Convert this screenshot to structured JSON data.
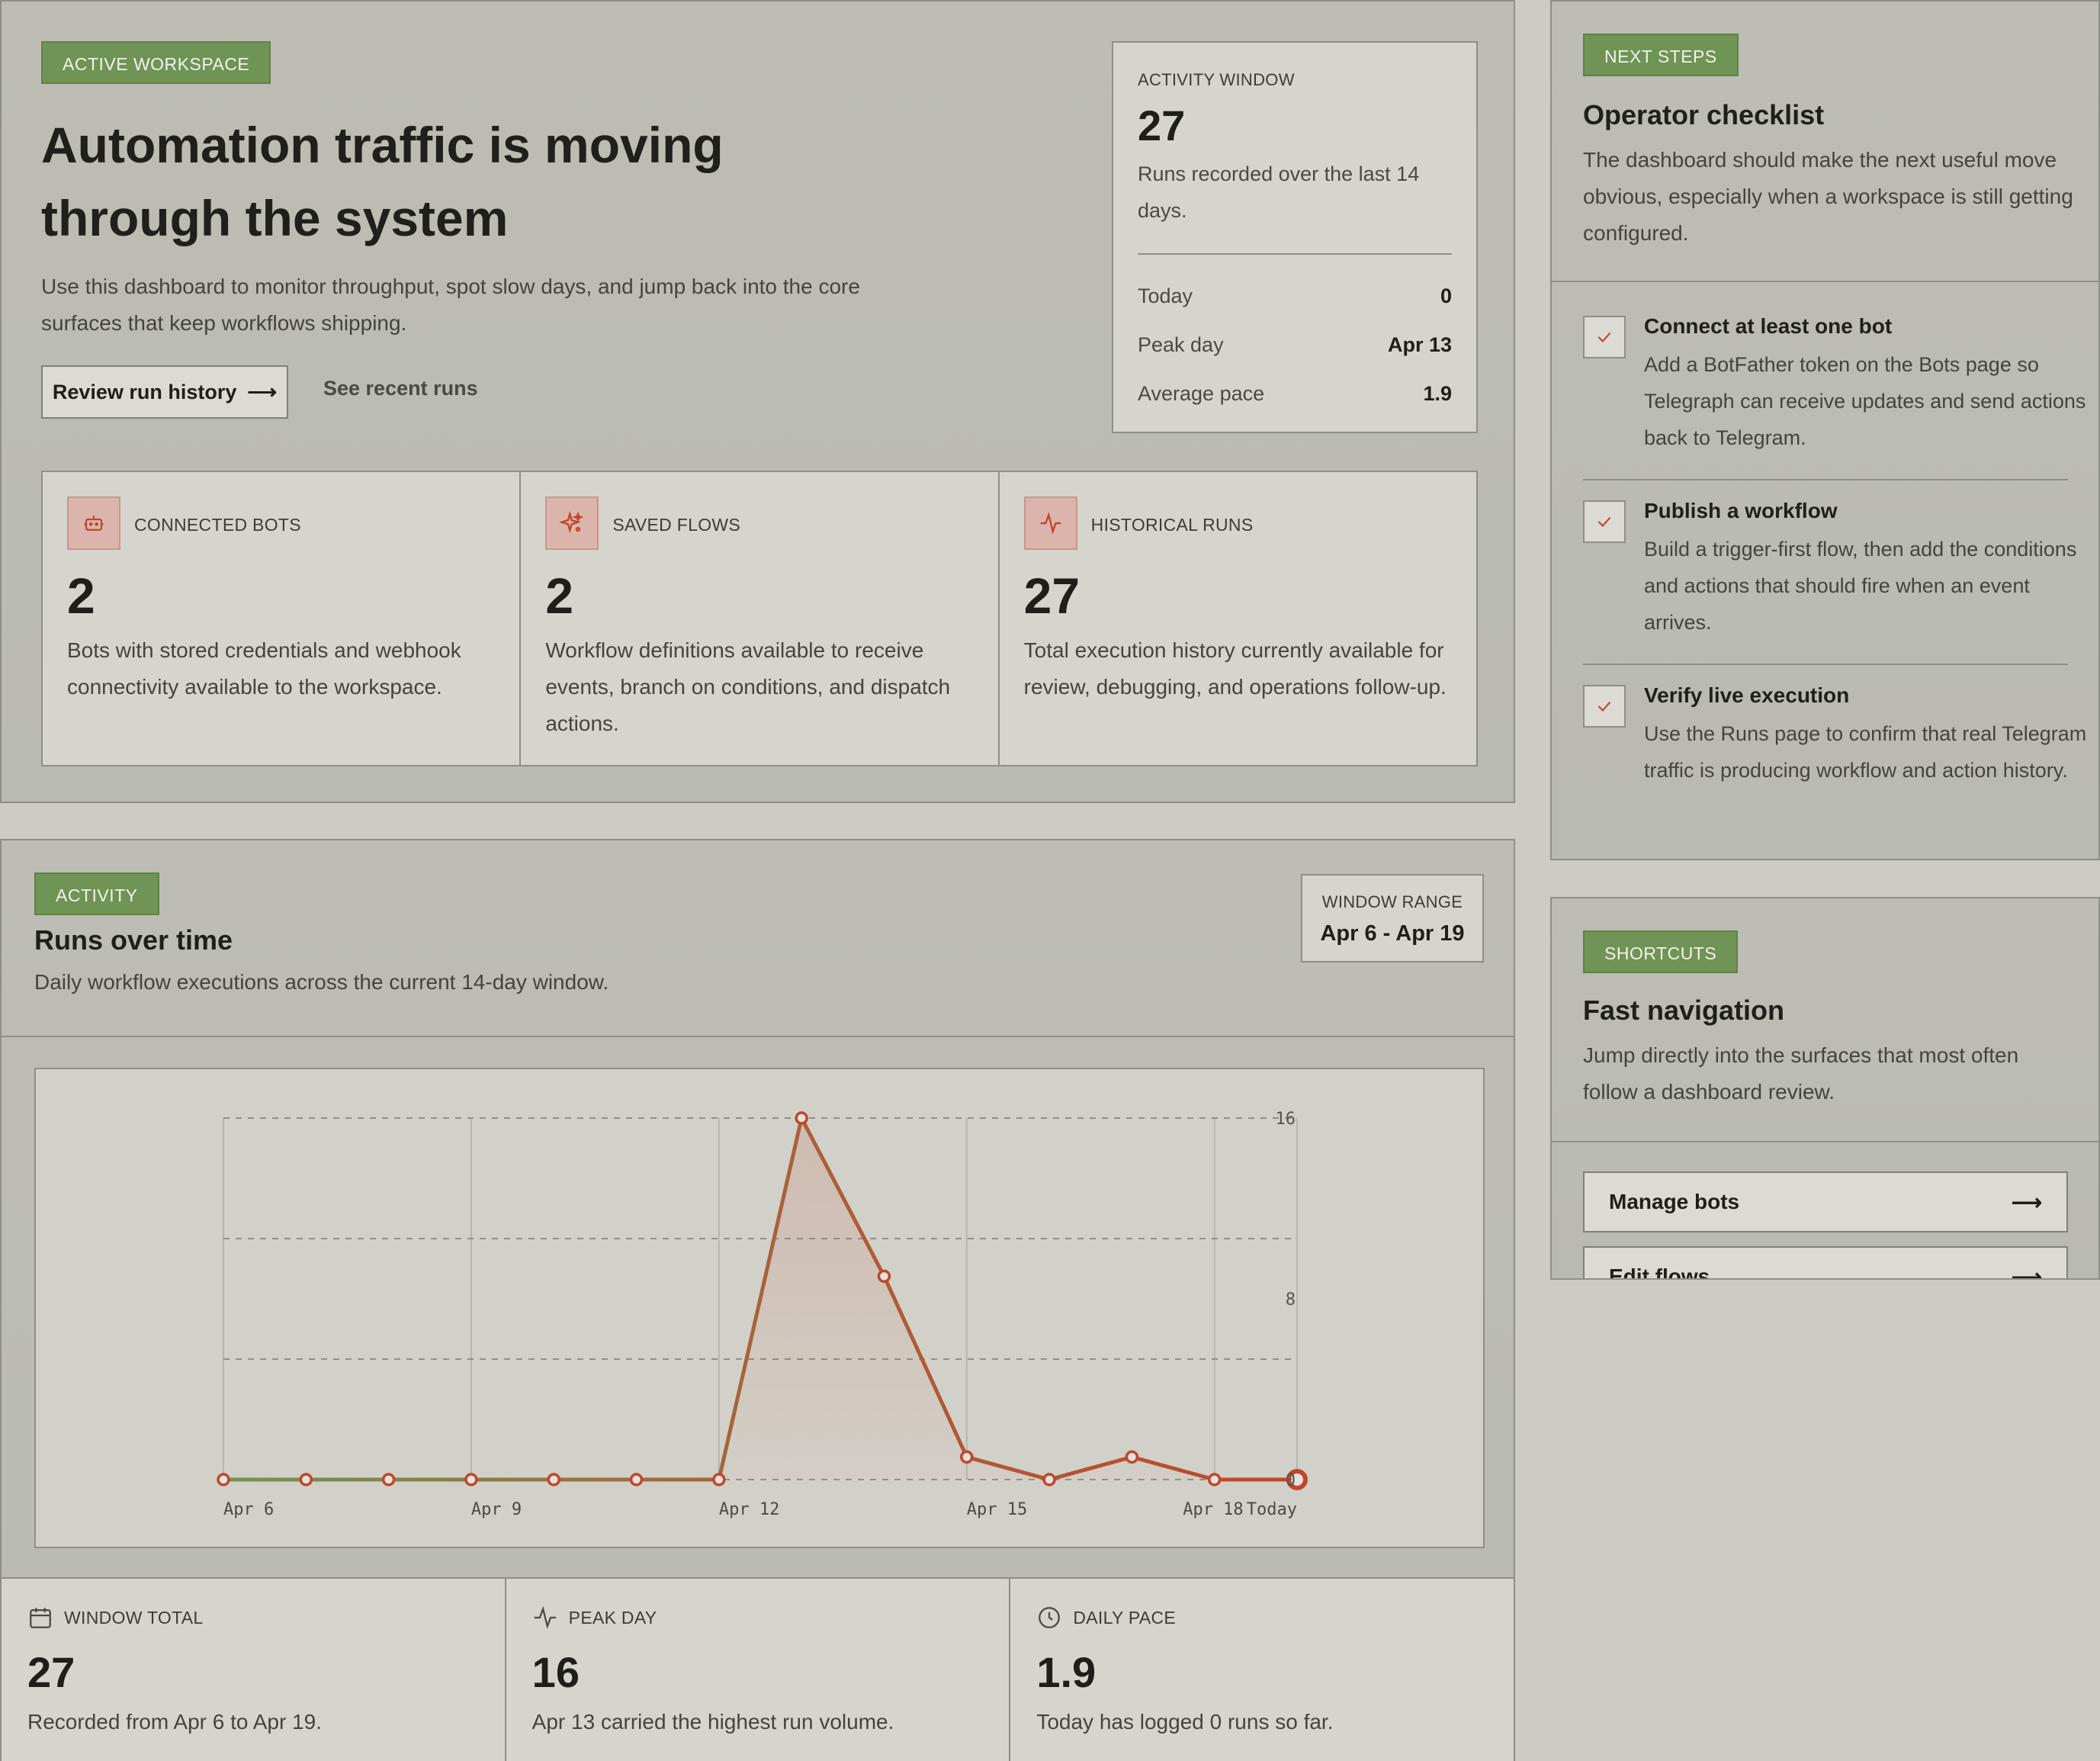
{
  "hero": {
    "tag": "ACTIVE WORKSPACE",
    "title": "Automation traffic is moving through the system",
    "description": "Use this dashboard to monitor throughput, spot slow days, and jump back into the core surfaces that keep workflows shipping.",
    "primary_button": "Review run history",
    "secondary_link": "See recent runs"
  },
  "activity_window": {
    "label": "ACTIVITY WINDOW",
    "value": "27",
    "description": "Runs recorded over the last 14 days.",
    "rows": [
      {
        "key": "Today",
        "value": "0"
      },
      {
        "key": "Peak day",
        "value": "Apr 13"
      },
      {
        "key": "Average pace",
        "value": "1.9"
      }
    ]
  },
  "stats": [
    {
      "label": "CONNECTED BOTS",
      "value": "2",
      "description": "Bots with stored credentials and webhook connectivity available to the workspace.",
      "icon": "bot-icon"
    },
    {
      "label": "SAVED FLOWS",
      "value": "2",
      "description": "Workflow definitions available to receive events, branch on conditions, and dispatch actions.",
      "icon": "sparkle-icon"
    },
    {
      "label": "HISTORICAL RUNS",
      "value": "27",
      "description": "Total execution history currently available for review, debugging, and operations follow-up.",
      "icon": "pulse-icon"
    }
  ],
  "checklist": {
    "tag": "NEXT STEPS",
    "title": "Operator checklist",
    "description": "The dashboard should make the next useful move obvious, especially when a workspace is still getting configured.",
    "items": [
      {
        "title": "Connect at least one bot",
        "description": "Add a BotFather token on the Bots page so Telegraph can receive updates and send actions back to Telegram."
      },
      {
        "title": "Publish a workflow",
        "description": "Build a trigger-first flow, then add the conditions and actions that should fire when an event arrives."
      },
      {
        "title": "Verify live execution",
        "description": "Use the Runs page to confirm that real Telegram traffic is producing workflow and action history."
      }
    ]
  },
  "shortcuts": {
    "tag": "SHORTCUTS",
    "title": "Fast navigation",
    "description": "Jump directly into the surfaces that most often follow a dashboard review.",
    "links": [
      {
        "label": "Manage bots"
      },
      {
        "label": "Edit flows"
      }
    ]
  },
  "activity": {
    "tag": "ACTIVITY",
    "title": "Runs over time",
    "description": "Daily workflow executions across the current 14-day window.",
    "window_range_label": "WINDOW RANGE",
    "window_range_value": "Apr 6 - Apr 19",
    "stats": [
      {
        "label": "WINDOW TOTAL",
        "value": "27",
        "description": "Recorded from Apr 6 to Apr 19.",
        "icon": "calendar-icon"
      },
      {
        "label": "PEAK DAY",
        "value": "16",
        "description": "Apr 13 carried the highest run volume.",
        "icon": "pulse-icon"
      },
      {
        "label": "DAILY PACE",
        "value": "1.9",
        "description": "Today has logged 0 runs so far.",
        "icon": "clock-icon"
      }
    ]
  },
  "chart_data": {
    "type": "line",
    "x": [
      "Apr 6",
      "Apr 7",
      "Apr 8",
      "Apr 9",
      "Apr 10",
      "Apr 11",
      "Apr 12",
      "Apr 13",
      "Apr 14",
      "Apr 15",
      "Apr 16",
      "Apr 17",
      "Apr 18",
      "Apr 19"
    ],
    "values": [
      0,
      0,
      0,
      0,
      0,
      0,
      0,
      16,
      9,
      1,
      0,
      1,
      0,
      0
    ],
    "x_tick_labels": [
      {
        "index": 0,
        "label": "Apr 6"
      },
      {
        "index": 3,
        "label": "Apr 9"
      },
      {
        "index": 6,
        "label": "Apr 12"
      },
      {
        "index": 9,
        "label": "Apr 15"
      },
      {
        "index": 12,
        "label": "Apr 18"
      },
      {
        "index": 13,
        "label": "Today"
      }
    ],
    "y_ticks": [
      0,
      8,
      16
    ],
    "ylim": [
      0,
      16
    ],
    "grid": true,
    "colors": {
      "line_start": "#6f9455",
      "line_end": "#c0462c",
      "marker": "#c0462c"
    }
  }
}
